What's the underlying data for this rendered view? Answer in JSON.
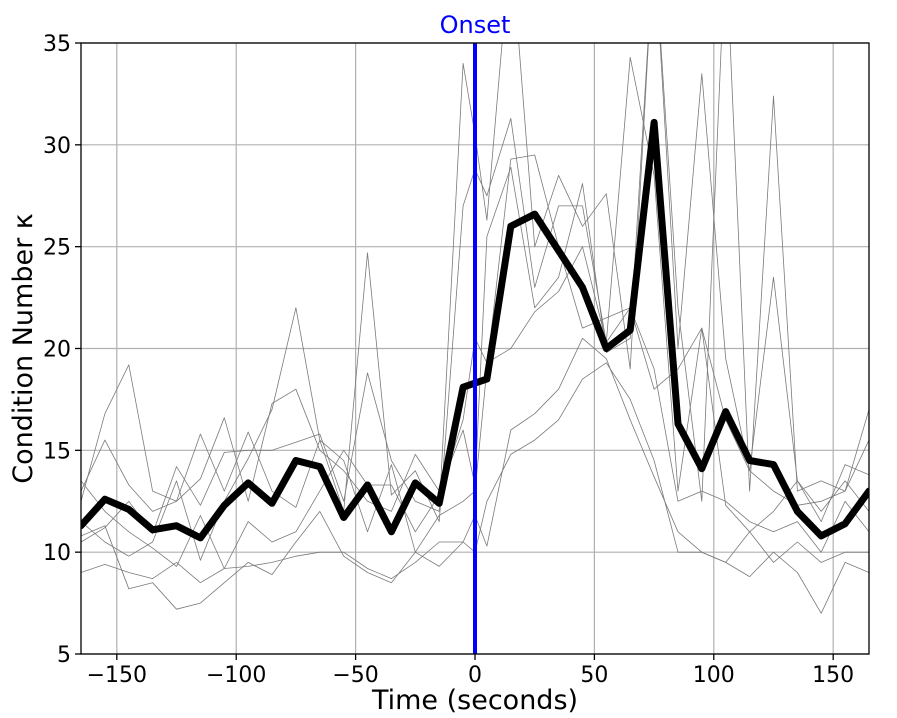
{
  "chart_data": {
    "type": "line",
    "title": "",
    "xlabel": "Time (seconds)",
    "ylabel": "Condition Number κ",
    "xlim": [
      -165,
      165
    ],
    "ylim": [
      5,
      35
    ],
    "grid": true,
    "xticks": [
      -150,
      -100,
      -50,
      0,
      50,
      100,
      150
    ],
    "yticks": [
      5,
      10,
      15,
      20,
      25,
      30,
      35
    ],
    "xtick_labels": [
      "−150",
      "−100",
      "−50",
      "0",
      "50",
      "100",
      "150"
    ],
    "ytick_labels": [
      "5",
      "10",
      "15",
      "20",
      "25",
      "30",
      "35"
    ],
    "annotation": {
      "x": 0,
      "label": "Onset",
      "color": "#0000ff"
    },
    "x": [
      -165,
      -155,
      -145,
      -135,
      -125,
      -115,
      -105,
      -95,
      -85,
      -75,
      -65,
      -55,
      -45,
      -35,
      -25,
      -15,
      -5,
      0,
      5,
      15,
      25,
      35,
      45,
      55,
      65,
      75,
      85,
      95,
      105,
      115,
      125,
      135,
      145,
      155,
      165
    ],
    "mean": {
      "color": "#000000",
      "values": [
        11.3,
        12.6,
        12.1,
        11.1,
        11.3,
        10.7,
        12.3,
        13.4,
        12.4,
        14.5,
        14.2,
        11.7,
        13.3,
        11.0,
        13.4,
        12.4,
        18.1,
        18.3,
        18.5,
        26.0,
        26.6,
        24.8,
        23.0,
        20.0,
        20.9,
        31.1,
        16.3,
        14.1,
        16.9,
        14.5,
        14.3,
        12.0,
        10.8,
        11.4,
        13.0
      ]
    },
    "traces": [
      {
        "color": "#7a7a7a",
        "values": [
          12.5,
          16.8,
          19.2,
          13.0,
          12.5,
          15.8,
          13.0,
          15.9,
          13.0,
          12.2,
          15.5,
          12.0,
          24.7,
          12.8,
          14.0,
          11.5,
          27.0,
          28.8,
          27.5,
          31.3,
          23.0,
          27.0,
          27.0,
          20.3,
          34.3,
          28.5,
          13.0,
          21.0,
          12.3,
          11.0,
          12.0,
          13.5,
          12.0,
          13.5,
          12.0
        ]
      },
      {
        "color": "#7a7a7a",
        "values": [
          10.5,
          11.2,
          12.5,
          10.9,
          14.2,
          12.3,
          14.9,
          15.0,
          15.0,
          15.4,
          15.8,
          12.5,
          18.8,
          14.5,
          12.5,
          12.0,
          34.0,
          30.5,
          26.3,
          40.0,
          25.0,
          28.5,
          26.0,
          27.6,
          19.0,
          40.0,
          22.0,
          12.5,
          40.0,
          13.0,
          32.4,
          13.0,
          13.5,
          13.0,
          17.0
        ]
      },
      {
        "color": "#7a7a7a",
        "values": [
          13.0,
          15.5,
          13.3,
          12.0,
          12.5,
          13.6,
          16.6,
          12.5,
          17.3,
          18.0,
          15.0,
          14.0,
          12.5,
          12.0,
          14.8,
          13.0,
          16.0,
          13.3,
          25.5,
          28.9,
          22.0,
          23.5,
          28.1,
          19.8,
          20.5,
          40.0,
          20.0,
          33.5,
          19.5,
          14.0,
          23.5,
          13.5,
          11.5,
          14.3,
          13.8
        ]
      },
      {
        "color": "#7a7a7a",
        "values": [
          11.5,
          10.5,
          9.8,
          10.5,
          13.5,
          9.6,
          12.5,
          14.6,
          17.0,
          22.0,
          15.5,
          14.5,
          11.0,
          14.3,
          10.0,
          11.8,
          12.5,
          13.0,
          19.0,
          29.3,
          29.5,
          25.0,
          21.0,
          21.5,
          22.0,
          18.0,
          19.0,
          21.0,
          16.5,
          14.0,
          13.0,
          12.3,
          12.5,
          13.0,
          15.5
        ]
      },
      {
        "color": "#7a7a7a",
        "values": [
          13.5,
          12.0,
          11.0,
          10.2,
          9.3,
          11.8,
          9.2,
          11.5,
          10.5,
          11.0,
          13.0,
          15.0,
          13.3,
          13.3,
          11.0,
          12.8,
          16.5,
          20.5,
          19.3,
          20.0,
          21.8,
          22.8,
          25.0,
          20.3,
          22.0,
          19.0,
          12.5,
          13.0,
          12.5,
          11.5,
          11.0,
          11.5,
          10.0,
          12.5,
          11.0
        ]
      },
      {
        "color": "#7a7a7a",
        "values": [
          9.0,
          9.4,
          9.0,
          8.7,
          9.5,
          8.5,
          9.2,
          9.3,
          9.5,
          9.8,
          10.0,
          10.0,
          9.2,
          8.7,
          9.5,
          10.5,
          10.5,
          10.0,
          12.5,
          14.8,
          15.5,
          16.5,
          18.5,
          19.3,
          17.5,
          14.5,
          10.0,
          10.0,
          9.5,
          11.0,
          9.5,
          10.5,
          9.5,
          10.0,
          10.0
        ]
      },
      {
        "color": "#7a7a7a",
        "values": [
          10.8,
          11.3,
          8.2,
          8.5,
          7.2,
          7.5,
          8.5,
          9.5,
          8.9,
          10.5,
          12.0,
          9.8,
          9.0,
          8.5,
          10.0,
          9.3,
          10.5,
          11.8,
          10.3,
          16.0,
          16.8,
          18.0,
          20.5,
          19.5,
          16.5,
          13.7,
          11.0,
          10.0,
          9.5,
          8.8,
          10.0,
          9.0,
          7.0,
          9.5,
          9.0
        ]
      }
    ]
  }
}
